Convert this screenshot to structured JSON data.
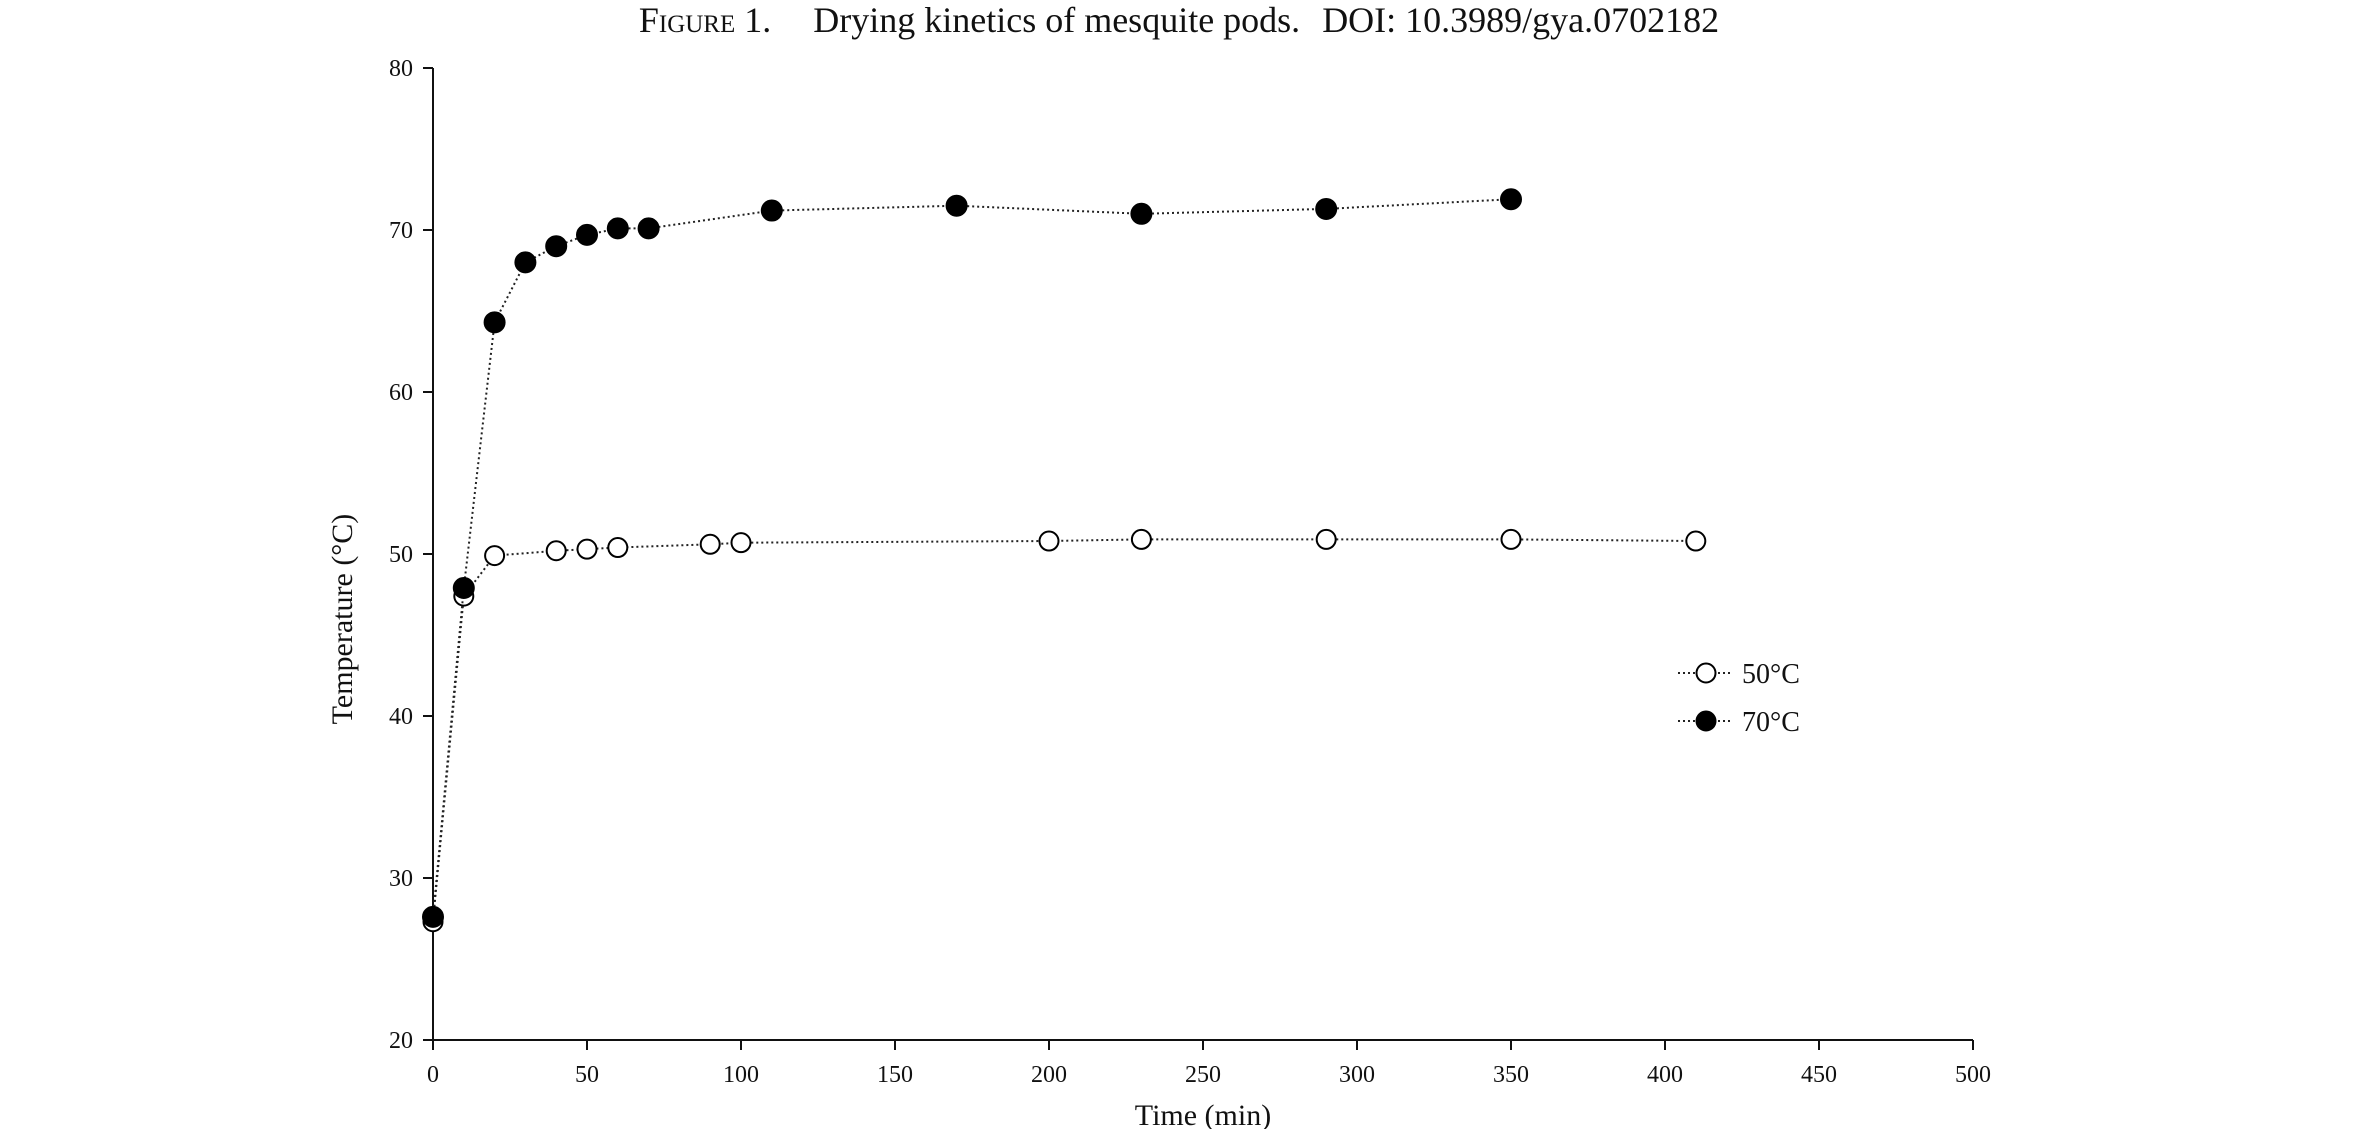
{
  "figure": {
    "label": "Figure 1.",
    "title": "Drying kinetics of mesquite pods.",
    "doi": "DOI: 10.3989/gya.0702182"
  },
  "chart_data": {
    "type": "line",
    "title": "",
    "xlabel": "Time (min)",
    "ylabel": "Temperature (°C)",
    "xlim": [
      0,
      500
    ],
    "ylim": [
      20,
      80
    ],
    "xticks": [
      0,
      50,
      100,
      150,
      200,
      250,
      300,
      350,
      400,
      450,
      500
    ],
    "yticks": [
      20,
      30,
      40,
      50,
      60,
      70,
      80
    ],
    "grid": false,
    "legend_position": "right",
    "line_style": "dotted",
    "series": [
      {
        "name": "50°C",
        "marker": "open-circle",
        "color": "#111111",
        "x": [
          0,
          10,
          20,
          40,
          50,
          60,
          90,
          100,
          200,
          230,
          290,
          350,
          410
        ],
        "y": [
          27.3,
          47.4,
          49.9,
          50.2,
          50.3,
          50.4,
          50.6,
          50.7,
          50.8,
          50.9,
          50.9,
          50.9,
          50.8
        ]
      },
      {
        "name": "70°C",
        "marker": "filled-circle",
        "color": "#000000",
        "x": [
          0,
          10,
          20,
          30,
          40,
          50,
          60,
          70,
          110,
          170,
          230,
          290,
          350
        ],
        "y": [
          27.6,
          47.9,
          64.3,
          68.0,
          69.0,
          69.7,
          70.1,
          70.1,
          71.2,
          71.5,
          71.0,
          71.3,
          71.9
        ]
      }
    ]
  }
}
